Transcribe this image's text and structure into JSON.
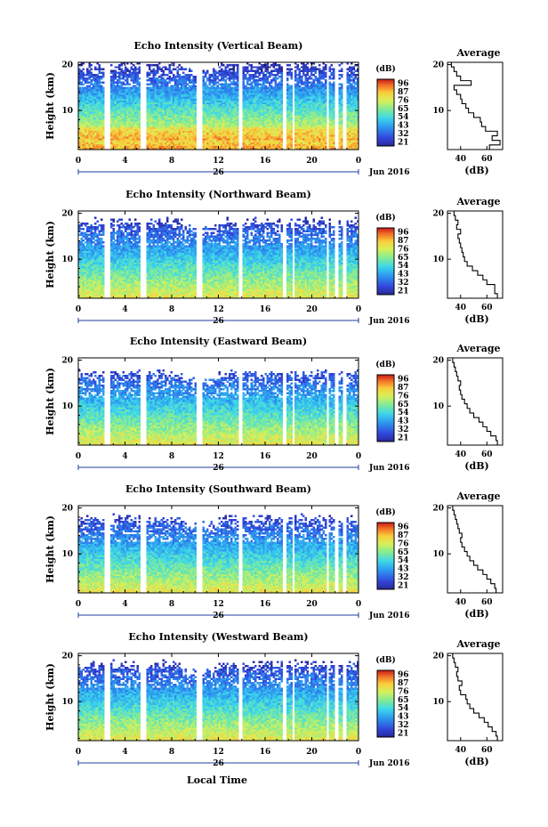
{
  "chart_data": {
    "type": "heatmap",
    "x_axis": {
      "ticks": [
        "0",
        "4",
        "8",
        "12",
        "16",
        "20",
        "0"
      ],
      "date_marker": "26",
      "month_label": "Jun 2016",
      "xlabel": "Local Time",
      "range": [
        0,
        24
      ]
    },
    "y_axis": {
      "ylabel": "Height (km)",
      "ticks": [
        "20",
        "10"
      ],
      "range": [
        1.5,
        20.5
      ]
    },
    "colorbar": {
      "unit": "(dB)",
      "ticks": [
        "96",
        "87",
        "76",
        "65",
        "54",
        "43",
        "32",
        "21"
      ],
      "range": [
        21,
        96
      ]
    },
    "gaps_hours": [
      [
        2.3,
        2.7
      ],
      [
        5.3,
        5.8
      ],
      [
        10.2,
        10.6
      ],
      [
        13.7,
        14.1
      ],
      [
        17.5,
        17.8
      ],
      [
        18.3,
        18.5
      ],
      [
        21.3,
        21.5
      ],
      [
        22.0,
        22.2
      ],
      [
        22.7,
        22.9
      ]
    ],
    "profile": {
      "title": "Average",
      "xlabel": "(dB)",
      "x_ticks": [
        "40",
        "60"
      ],
      "x_range": [
        30,
        72
      ],
      "y_range": [
        1.5,
        20.5
      ]
    },
    "panels": [
      {
        "title": "Echo Intensity (Vertical Beam)",
        "top_km": 20.0,
        "profile": [
          [
            2,
            62
          ],
          [
            3,
            70
          ],
          [
            4,
            64
          ],
          [
            5,
            68
          ],
          [
            6,
            59
          ],
          [
            7,
            56
          ],
          [
            8,
            55
          ],
          [
            9,
            50
          ],
          [
            10,
            46
          ],
          [
            11,
            44
          ],
          [
            12,
            41
          ],
          [
            13,
            40
          ],
          [
            14,
            37
          ],
          [
            15,
            35
          ],
          [
            16,
            48
          ],
          [
            17,
            40
          ],
          [
            18,
            37
          ],
          [
            19,
            35
          ],
          [
            20,
            33
          ]
        ]
      },
      {
        "title": "Echo Intensity (Northward Beam)",
        "top_km": 18.0,
        "profile": [
          [
            2,
            68
          ],
          [
            3,
            66
          ],
          [
            4,
            66
          ],
          [
            5,
            60
          ],
          [
            6,
            57
          ],
          [
            7,
            53
          ],
          [
            8,
            49
          ],
          [
            9,
            45
          ],
          [
            10,
            43
          ],
          [
            11,
            42
          ],
          [
            12,
            41
          ],
          [
            13,
            40
          ],
          [
            14,
            39
          ],
          [
            15,
            38
          ],
          [
            16,
            40
          ],
          [
            17,
            37
          ],
          [
            18,
            38
          ],
          [
            19,
            36
          ],
          [
            20,
            35
          ]
        ]
      },
      {
        "title": "Echo Intensity (Eastward Beam)",
        "top_km": 17.0,
        "profile": [
          [
            2,
            68
          ],
          [
            3,
            67
          ],
          [
            4,
            63
          ],
          [
            5,
            60
          ],
          [
            6,
            57
          ],
          [
            7,
            54
          ],
          [
            8,
            50
          ],
          [
            9,
            47
          ],
          [
            10,
            45
          ],
          [
            11,
            43
          ],
          [
            12,
            41
          ],
          [
            13,
            40
          ],
          [
            14,
            39
          ],
          [
            15,
            40
          ],
          [
            16,
            38
          ],
          [
            17,
            37
          ],
          [
            18,
            36
          ],
          [
            19,
            35
          ],
          [
            20,
            34
          ]
        ]
      },
      {
        "title": "Echo Intensity (Southward Beam)",
        "top_km": 17.5,
        "profile": [
          [
            2,
            67
          ],
          [
            3,
            66
          ],
          [
            4,
            63
          ],
          [
            5,
            60
          ],
          [
            6,
            57
          ],
          [
            7,
            53
          ],
          [
            8,
            50
          ],
          [
            9,
            47
          ],
          [
            10,
            45
          ],
          [
            11,
            43
          ],
          [
            12,
            41
          ],
          [
            13,
            40
          ],
          [
            14,
            41
          ],
          [
            15,
            39
          ],
          [
            16,
            38
          ],
          [
            17,
            37
          ],
          [
            18,
            36
          ],
          [
            19,
            35
          ],
          [
            20,
            34
          ]
        ]
      },
      {
        "title": "Echo Intensity (Westward Beam)",
        "top_km": 18.0,
        "profile": [
          [
            2,
            68
          ],
          [
            3,
            67
          ],
          [
            4,
            64
          ],
          [
            5,
            61
          ],
          [
            6,
            58
          ],
          [
            7,
            54
          ],
          [
            8,
            50
          ],
          [
            9,
            47
          ],
          [
            10,
            45
          ],
          [
            11,
            44
          ],
          [
            12,
            40
          ],
          [
            13,
            39
          ],
          [
            14,
            41
          ],
          [
            15,
            38
          ],
          [
            16,
            37
          ],
          [
            17,
            38
          ],
          [
            18,
            36
          ],
          [
            19,
            35
          ],
          [
            20,
            34
          ]
        ]
      }
    ]
  }
}
